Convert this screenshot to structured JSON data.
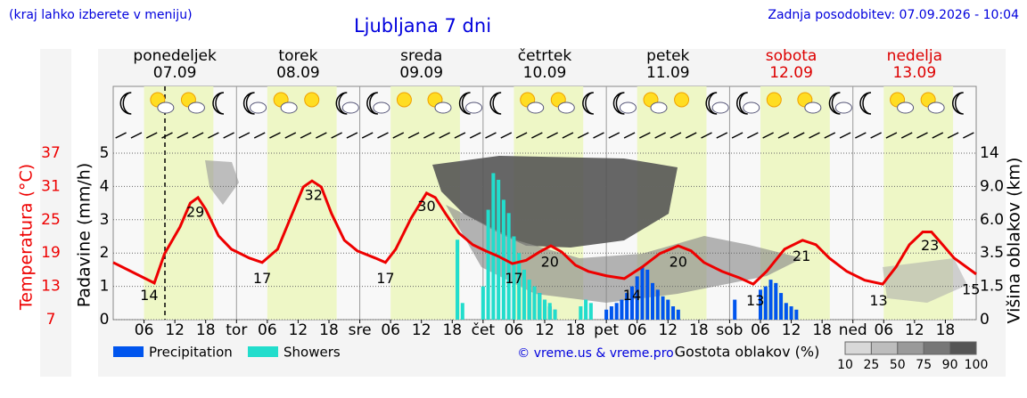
{
  "header": {
    "hint": "(kraj lahko izberete v meniju)",
    "title": "Ljubljana 7 dni",
    "updated": "Zadnja posodobitev: 07.09.2026 - 10:04"
  },
  "days": [
    {
      "name": "ponedeljek",
      "date": "07.09",
      "color": "#000000"
    },
    {
      "name": "torek",
      "date": "08.09",
      "color": "#000000"
    },
    {
      "name": "sreda",
      "date": "09.09",
      "color": "#000000"
    },
    {
      "name": "četrtek",
      "date": "10.09",
      "color": "#000000"
    },
    {
      "name": "petek",
      "date": "11.09",
      "color": "#000000"
    },
    {
      "name": "sobota",
      "date": "12.09",
      "color": "#dd0000"
    },
    {
      "name": "nedelja",
      "date": "13.09",
      "color": "#dd0000"
    }
  ],
  "chart_data": {
    "type": "line",
    "y_label": "Padavine (mm/h)",
    "t_label": "Temperatura (°C)",
    "y2_label": "Višina oblakov (km)",
    "xlim": [
      0,
      168
    ],
    "xticks": [
      {
        "value": 6,
        "label": "06"
      },
      {
        "value": 12,
        "label": "12"
      },
      {
        "value": 18,
        "label": "18"
      },
      {
        "value": 24,
        "label": "tor"
      },
      {
        "value": 30,
        "label": "06"
      },
      {
        "value": 36,
        "label": "12"
      },
      {
        "value": 42,
        "label": "18"
      },
      {
        "value": 48,
        "label": "sre"
      },
      {
        "value": 54,
        "label": "06"
      },
      {
        "value": 60,
        "label": "12"
      },
      {
        "value": 66,
        "label": "18"
      },
      {
        "value": 72,
        "label": "čet"
      },
      {
        "value": 78,
        "label": "06"
      },
      {
        "value": 84,
        "label": "12"
      },
      {
        "value": 90,
        "label": "18"
      },
      {
        "value": 96,
        "label": "pet"
      },
      {
        "value": 102,
        "label": "06"
      },
      {
        "value": 108,
        "label": "12"
      },
      {
        "value": 114,
        "label": "18"
      },
      {
        "value": 120,
        "label": "sob"
      },
      {
        "value": 126,
        "label": "06"
      },
      {
        "value": 132,
        "label": "12"
      },
      {
        "value": 138,
        "label": "18"
      },
      {
        "value": 144,
        "label": "ned"
      },
      {
        "value": 150,
        "label": "06"
      },
      {
        "value": 156,
        "label": "12"
      },
      {
        "value": 162,
        "label": "18"
      }
    ],
    "ylim": [
      0,
      5
    ],
    "yticks": [
      0,
      1,
      2,
      3,
      4,
      5
    ],
    "grid": true,
    "tlim": [
      7,
      37
    ],
    "tticks": [
      7,
      13,
      19,
      25,
      31,
      37
    ],
    "tcolor": "#ee0000",
    "y2ticks": [
      0,
      1.5,
      3.5,
      {
        "value": 6,
        "label": "6.0"
      },
      {
        "value": 9,
        "label": "9.0"
      },
      14
    ],
    "temperature": {
      "color": "#ee0000",
      "x": [
        0,
        8,
        10,
        13,
        15,
        16.5,
        18,
        20.5,
        23,
        26.5,
        29,
        32,
        34.5,
        37,
        38.7,
        40.5,
        42.5,
        45,
        47.5,
        51,
        53,
        55,
        58,
        61,
        62.7,
        64.7,
        67.3,
        70,
        72.5,
        75,
        77.7,
        80.4,
        83,
        85.2,
        87.3,
        90,
        92.5,
        96,
        99.5,
        103,
        106.4,
        110,
        112.5,
        115,
        118.5,
        122,
        124.6,
        127.2,
        130.7,
        134.2,
        136.8,
        139.4,
        142.8,
        146.3,
        149.8,
        152.4,
        155,
        157.6,
        159.3,
        161,
        163.7,
        168
      ],
      "values": [
        17.3,
        13.6,
        18.9,
        23.7,
        28.0,
        29.0,
        26.9,
        22.1,
        19.7,
        18.1,
        17.3,
        19.7,
        25.3,
        30.9,
        32.0,
        30.9,
        26.1,
        21.3,
        19.4,
        18.1,
        17.3,
        19.7,
        25.3,
        29.8,
        29.0,
        26.1,
        22.6,
        20.5,
        19.4,
        18.4,
        17.1,
        17.7,
        19.2,
        20.3,
        19.2,
        16.8,
        15.7,
        14.9,
        14.4,
        16.5,
        18.9,
        20.3,
        19.4,
        17.3,
        15.7,
        14.5,
        13.4,
        15.7,
        19.7,
        21.3,
        20.5,
        18.1,
        15.7,
        14.1,
        13.4,
        16.5,
        20.5,
        22.8,
        22.8,
        21.0,
        18.1,
        15.2
      ]
    },
    "extremes": [
      {
        "x": 7,
        "value": 14
      },
      {
        "x": 16,
        "value": 29
      },
      {
        "x": 29,
        "value": 17
      },
      {
        "x": 39,
        "value": 32
      },
      {
        "x": 53,
        "value": 17
      },
      {
        "x": 61,
        "value": 30
      },
      {
        "x": 78,
        "value": 17
      },
      {
        "x": 85,
        "value": 20
      },
      {
        "x": 101,
        "value": 14
      },
      {
        "x": 110,
        "value": 20
      },
      {
        "x": 125,
        "value": 13
      },
      {
        "x": 134,
        "value": 21
      },
      {
        "x": 149,
        "value": 13
      },
      {
        "x": 159,
        "value": 23
      },
      {
        "x": 167,
        "value": 15
      }
    ],
    "series": [
      {
        "name": "Precipitation",
        "color": "#0055ee",
        "x": [
          81,
          82,
          83,
          84,
          85,
          86,
          96,
          97,
          98,
          99,
          100,
          101,
          102,
          103,
          104,
          105,
          106,
          107,
          108,
          109,
          110,
          121,
          126,
          127,
          128,
          129,
          130,
          131,
          132,
          133
        ],
        "values": [
          0.9,
          0.8,
          0.8,
          0.6,
          0.4,
          0.3,
          0.3,
          0.4,
          0.5,
          0.6,
          0.8,
          1.0,
          1.3,
          1.6,
          1.5,
          1.1,
          0.9,
          0.7,
          0.6,
          0.4,
          0.3,
          0.6,
          0.9,
          1.0,
          1.2,
          1.1,
          0.8,
          0.5,
          0.4,
          0.3
        ]
      },
      {
        "name": "Showers",
        "color": "#22ddcc",
        "x": [
          67,
          68,
          72,
          73,
          74,
          75,
          76,
          77,
          78,
          79,
          80,
          81,
          82,
          83,
          84,
          85,
          86,
          91,
          92,
          93
        ],
        "values": [
          2.4,
          0.5,
          1.0,
          3.3,
          4.4,
          4.2,
          3.6,
          3.2,
          2.5,
          2.0,
          1.5,
          1.2,
          1.0,
          0.8,
          0.6,
          0.5,
          0.3,
          0.4,
          0.6,
          0.5
        ]
      }
    ],
    "credit": "© vreme.us & vreme.pro",
    "cloud_legend": {
      "title": "Gostota oblakov (%)",
      "ticks": [
        10,
        25,
        50,
        75,
        90,
        100
      ]
    }
  }
}
